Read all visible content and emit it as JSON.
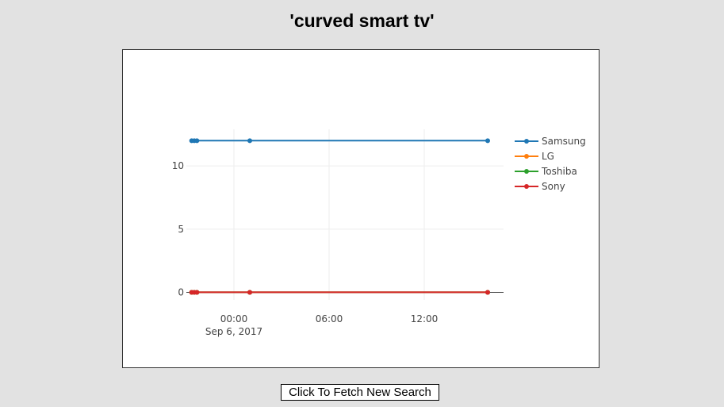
{
  "page": {
    "title": "'curved smart tv'",
    "fetch_button_label": "Click To Fetch New Search"
  },
  "chart_data": {
    "type": "line",
    "title": "",
    "xlabel": "",
    "ylabel": "",
    "x": [
      "2017-09-05 21:20",
      "2017-09-05 21:30",
      "2017-09-05 21:40",
      "2017-09-06 01:00",
      "2017-09-06 16:00"
    ],
    "series": [
      {
        "name": "Samsung",
        "color": "#1f77b4",
        "values": [
          12,
          12,
          12,
          12,
          12
        ]
      },
      {
        "name": "LG",
        "color": "#ff7f0e",
        "values": [
          0,
          0,
          0,
          0,
          0
        ]
      },
      {
        "name": "Toshiba",
        "color": "#2ca02c",
        "values": [
          0,
          0,
          0,
          0,
          0
        ]
      },
      {
        "name": "Sony",
        "color": "#d62728",
        "values": [
          0,
          0,
          0,
          0,
          0
        ]
      }
    ],
    "y_ticks": [
      0,
      5,
      10
    ],
    "x_ticks": [
      {
        "at": "2017-09-06 00:00",
        "label": "00:00",
        "sublabel": "Sep 6, 2017"
      },
      {
        "at": "2017-09-06 06:00",
        "label": "06:00",
        "sublabel": ""
      },
      {
        "at": "2017-09-06 12:00",
        "label": "12:00",
        "sublabel": ""
      }
    ],
    "xlim": [
      "2017-09-05 21:00",
      "2017-09-06 17:00"
    ],
    "ylim": [
      -0.6,
      12.9
    ],
    "grid": true,
    "legend_position": "top-right"
  }
}
